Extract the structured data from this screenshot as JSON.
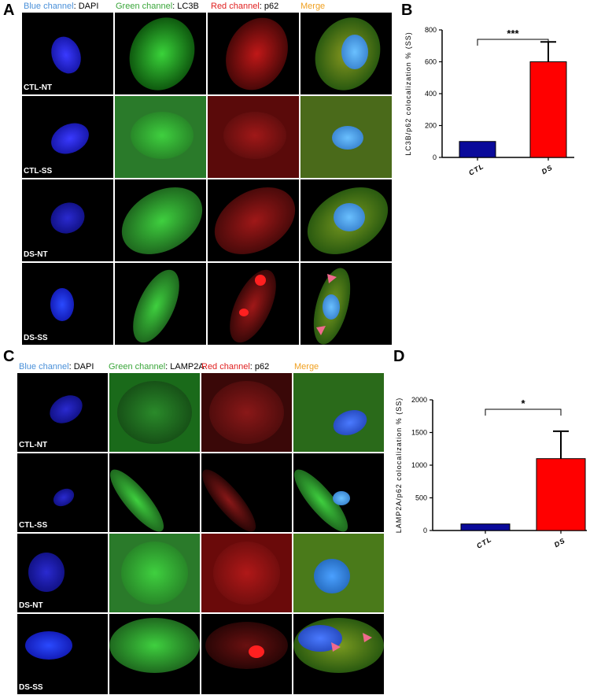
{
  "panels": {
    "A": {
      "letter": "A",
      "headers": {
        "blue_prefix": "Blue channel",
        "blue_suffix": ": DAPI",
        "green_prefix": "Green channel",
        "green_suffix": ": LC3B",
        "red_prefix": "Red channel",
        "red_suffix": ": p62",
        "merge": "Merge"
      },
      "rows": [
        "CTL-NT",
        "CTL-SS",
        "DS-NT",
        "DS-SS"
      ]
    },
    "C": {
      "letter": "C",
      "headers": {
        "blue_prefix": "Blue channel",
        "blue_suffix": ": DAPI",
        "green_prefix": "Green channel",
        "green_suffix": ": LAMP2A",
        "red_prefix": "Red channel",
        "red_suffix": ": p62",
        "merge": "Merge"
      },
      "rows": [
        "CTL-NT",
        "CTL-SS",
        "DS-NT",
        "DS-SS"
      ]
    },
    "B": {
      "letter": "B"
    },
    "D": {
      "letter": "D"
    }
  },
  "colors": {
    "ctl_bar": "#0a0a9a",
    "ds_bar": "#ff0000",
    "arrowhead": "#f06a8c"
  },
  "chart_data": [
    {
      "type": "bar",
      "categories": [
        "CTL",
        "DS"
      ],
      "values": [
        100,
        600
      ],
      "errors": [
        0,
        125
      ],
      "ylabel": "LC3B/p62 colocalization % (SS)",
      "ylim": [
        0,
        800
      ],
      "yticks": [
        0,
        200,
        400,
        600,
        800
      ],
      "significance": "***",
      "grid": false
    },
    {
      "type": "bar",
      "categories": [
        "CTL",
        "DS"
      ],
      "values": [
        100,
        1100
      ],
      "errors": [
        0,
        420
      ],
      "ylabel": "LAMP2A/p62 colocalization % (SS)",
      "ylim": [
        0,
        2000
      ],
      "yticks": [
        0,
        500,
        1000,
        1500,
        2000
      ],
      "significance": "*",
      "grid": false
    }
  ]
}
